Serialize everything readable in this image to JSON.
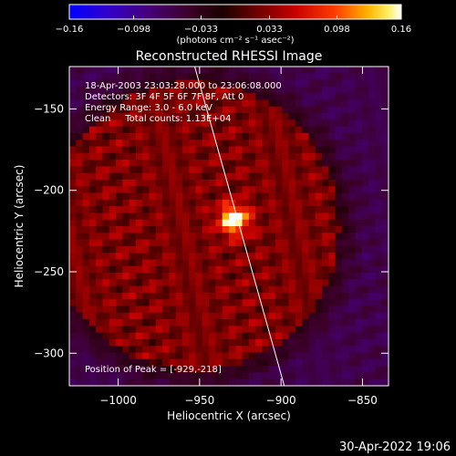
{
  "chart_data": {
    "type": "heatmap",
    "title": "Reconstructed RHESSI Image",
    "xlabel": "Heliocentric X (arcsec)",
    "ylabel": "Heliocentric Y (arcsec)",
    "xlim": [
      -1030,
      -834
    ],
    "ylim": [
      -320,
      -124
    ],
    "x_ticks": [
      -1000,
      -950,
      -900,
      -850
    ],
    "x_tick_labels": [
      "−1000",
      "−950",
      "−900",
      "−850"
    ],
    "y_ticks": [
      -150,
      -200,
      -250,
      -300
    ],
    "y_tick_labels": [
      "−150",
      "−200",
      "−250",
      "−300"
    ],
    "colorbar": {
      "range": [
        -0.16,
        0.16
      ],
      "ticks": [
        -0.16,
        -0.098,
        -0.033,
        0.033,
        0.098,
        0.16
      ],
      "tick_labels": [
        "−0.16",
        "−0.098",
        "−0.033",
        "0.033",
        "0.098",
        "0.16"
      ],
      "label": "(photons cm⁻² s⁻¹ asec⁻²)"
    },
    "annotations": [
      "18-Apr-2003 23:03:28.000 to 23:06:08.000",
      "Detectors: 3F 4F 5F 6F 7F 8F, Att 0",
      "Energy Range: 3.0 - 6.0 keV",
      "Clean     Total counts: 1.13E+04"
    ],
    "peak_label": "Position of Peak = [-929,-218]",
    "peak": {
      "x": -929,
      "y": -218
    },
    "limb_line": [
      [
        -953,
        -124
      ],
      [
        -898,
        -320
      ]
    ],
    "grid": false,
    "legend": "none"
  },
  "footer": {
    "timestamp": "30-Apr-2022 19:06"
  },
  "colors": {
    "background": "#000000",
    "foreground": "#ffffff",
    "colormap_low": "#0000ff",
    "colormap_mid": "#7a0000",
    "colormap_high": "#ffffff"
  }
}
